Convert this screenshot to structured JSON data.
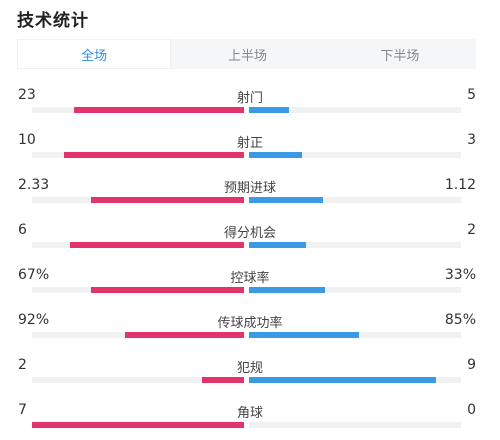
{
  "header": {
    "title": "技术统计"
  },
  "tabs": [
    {
      "label": "全场",
      "active": true
    },
    {
      "label": "上半场",
      "active": false
    },
    {
      "label": "下半场",
      "active": false
    }
  ],
  "colors": {
    "home_bar": "#e2336b",
    "away_bar": "#3b9ae6",
    "active_tab": "#2f8ee8",
    "track": "#f0f1f3"
  },
  "stats": [
    {
      "label": "射门",
      "home": "23",
      "away": "5",
      "home_share": 0.8,
      "away_share": 0.19
    },
    {
      "label": "射正",
      "home": "10",
      "away": "3",
      "home_share": 0.85,
      "away_share": 0.25
    },
    {
      "label": "预期进球",
      "home": "2.33",
      "away": "1.12",
      "home_share": 0.72,
      "away_share": 0.35
    },
    {
      "label": "得分机会",
      "home": "6",
      "away": "2",
      "home_share": 0.82,
      "away_share": 0.27
    },
    {
      "label": "控球率",
      "home": "67%",
      "away": "33%",
      "home_share": 0.72,
      "away_share": 0.36
    },
    {
      "label": "传球成功率",
      "home": "92%",
      "away": "85%",
      "home_share": 0.56,
      "away_share": 0.52
    },
    {
      "label": "犯规",
      "home": "2",
      "away": "9",
      "home_share": 0.2,
      "away_share": 0.88
    },
    {
      "label": "角球",
      "home": "7",
      "away": "0",
      "home_share": 1.0,
      "away_share": 0.0
    }
  ]
}
